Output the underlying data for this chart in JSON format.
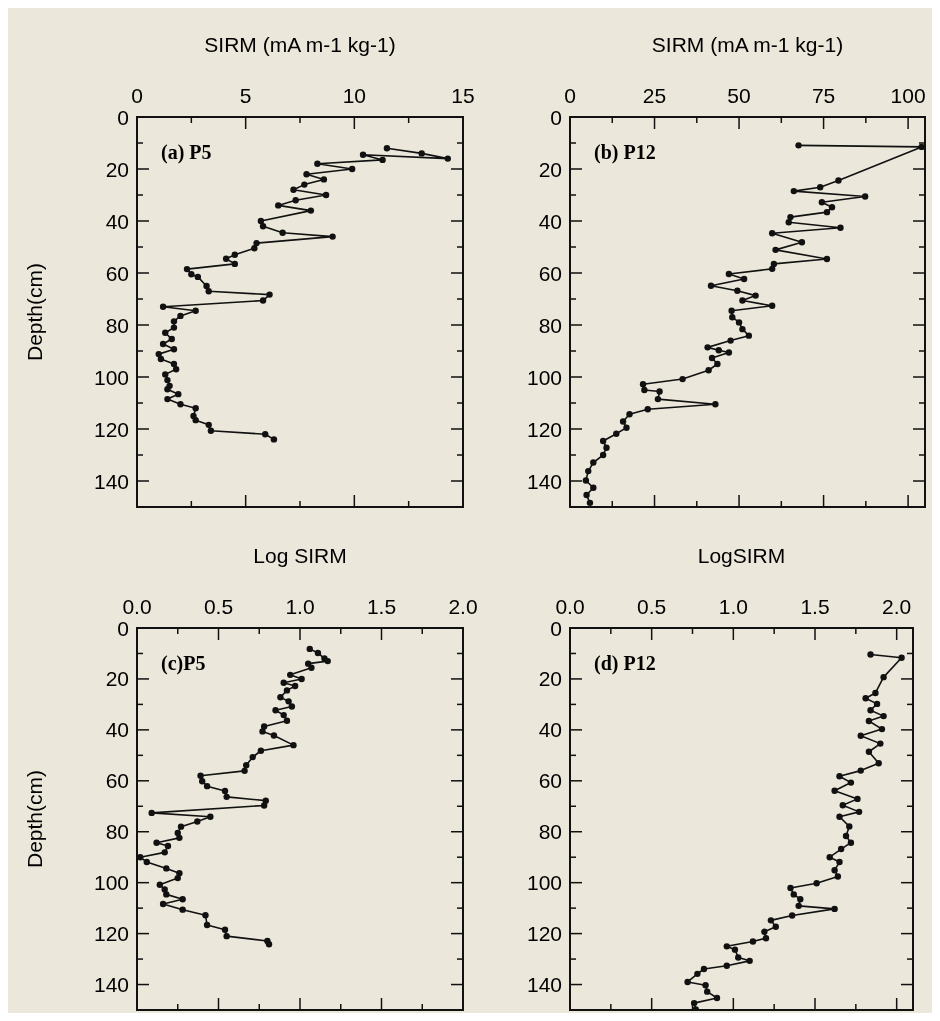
{
  "chart_data": [
    {
      "type": "line",
      "title": "(a) P5",
      "xlabel": "SIRM (mA m-1 kg-1)",
      "ylabel": "Depth(cm)",
      "marker": "circle",
      "line_style": "solid",
      "xlim": [
        0,
        15
      ],
      "ylim": [
        150,
        0
      ],
      "xticks": [
        0,
        {
          "value": 2.5,
          "label": null
        },
        5,
        {
          "value": 7.5,
          "label": null
        },
        10,
        {
          "value": 12.5,
          "label": null
        },
        15
      ],
      "yticks": [
        0,
        {
          "value": 10,
          "label": null
        },
        20,
        {
          "value": 30,
          "label": null
        },
        40,
        {
          "value": 50,
          "label": null
        },
        60,
        {
          "value": 70,
          "label": null
        },
        80,
        {
          "value": 90,
          "label": null
        },
        100,
        {
          "value": 110,
          "label": null
        },
        120,
        {
          "value": 130,
          "label": null
        },
        140
      ],
      "series": [
        {
          "color": "#111111",
          "x": [
            11.5,
            13.1,
            14.3,
            10.4,
            11.3,
            8.3,
            9.9,
            7.8,
            8.6,
            7.7,
            7.2,
            8.7,
            7.3,
            6.5,
            8.0,
            5.7,
            5.8,
            6.7,
            9.0,
            5.5,
            5.4,
            4.5,
            4.1,
            4.5,
            2.3,
            2.5,
            2.8,
            3.2,
            3.3,
            6.1,
            5.8,
            1.2,
            2.7,
            2.0,
            1.7,
            1.7,
            1.3,
            1.6,
            1.2,
            1.7,
            1.0,
            1.1,
            1.7,
            1.8,
            1.3,
            1.4,
            1.5,
            1.4,
            1.9,
            1.4,
            2.0,
            2.7,
            2.6,
            2.7,
            3.3,
            3.4,
            5.9,
            6.3
          ],
          "values": [
            12,
            14,
            16,
            14.5,
            16.5,
            18,
            20,
            22,
            24,
            26,
            28,
            30,
            32,
            34,
            36,
            40,
            42,
            44.5,
            46,
            48.5,
            50.5,
            53,
            54.5,
            56.5,
            58.5,
            60.5,
            61.5,
            65,
            67,
            68.3,
            70.6,
            73,
            74.5,
            76.5,
            78.6,
            81,
            83,
            85.4,
            87.3,
            89.3,
            91.2,
            93.1,
            95,
            97,
            99,
            101.2,
            103.4,
            104.7,
            106.6,
            108.5,
            110.5,
            112,
            115,
            116.6,
            118.4,
            120.7,
            122,
            124
          ]
        }
      ]
    },
    {
      "type": "line",
      "title": "(b) P12",
      "xlabel": "SIRM (mA m-1 kg-1)",
      "marker": "circle",
      "line_style": "solid",
      "xlim": [
        0,
        105
      ],
      "ylim": [
        150,
        0
      ],
      "xticks": [
        0,
        {
          "value": 12.5,
          "label": null
        },
        25,
        {
          "value": 37.5,
          "label": null
        },
        50,
        {
          "value": 62.5,
          "label": null
        },
        75,
        {
          "value": 87.5,
          "label": null
        },
        100
      ],
      "yticks": [
        0,
        {
          "value": 10,
          "label": null
        },
        20,
        {
          "value": 30,
          "label": null
        },
        40,
        {
          "value": 50,
          "label": null
        },
        60,
        {
          "value": 70,
          "label": null
        },
        80,
        {
          "value": 90,
          "label": null
        },
        100,
        {
          "value": 110,
          "label": null
        },
        120,
        {
          "value": 130,
          "label": null
        },
        140
      ],
      "series": [
        {
          "color": "#111111",
          "x": [
            67.6,
            104,
            79.4,
            74,
            66.2,
            87.3,
            74.5,
            77.5,
            76,
            65.2,
            64.7,
            80,
            59.8,
            68.6,
            60.8,
            76,
            60.3,
            59.8,
            47,
            51.5,
            41.7,
            49.5,
            54.9,
            51,
            59.8,
            47.8,
            48,
            50,
            51,
            52.9,
            47.5,
            40.7,
            44,
            47,
            42,
            43.6,
            41,
            33.3,
            21.6,
            22,
            26.5,
            26,
            43,
            23,
            17.6,
            15.7,
            16.7,
            13.7,
            9.8,
            10.8,
            9.8,
            6.9,
            5.4,
            4.7,
            6.9,
            4.9,
            5.9
          ],
          "values": [
            10.9,
            11.5,
            24.4,
            27,
            28.5,
            30.6,
            32.8,
            34.7,
            36.6,
            38.5,
            40.5,
            42.6,
            44.7,
            48.2,
            51.1,
            54.6,
            56.5,
            58.4,
            60.4,
            62.3,
            64.9,
            66.8,
            68.7,
            70.6,
            72.6,
            74.5,
            77,
            79,
            81.6,
            84.1,
            86,
            88.6,
            89.7,
            90.6,
            92.7,
            95,
            97.4,
            100.8,
            102.8,
            105,
            105.6,
            108.5,
            110.5,
            112.4,
            114.3,
            117.1,
            119.5,
            121.8,
            124.6,
            127.2,
            130,
            132.9,
            136.2,
            139.8,
            142.6,
            145.4,
            148.4
          ]
        }
      ]
    },
    {
      "type": "line",
      "title": "(c)P5",
      "xlabel": "Log SIRM",
      "ylabel": "Depth(cm)",
      "marker": "circle",
      "line_style": "solid",
      "xlim": [
        0,
        2
      ],
      "ylim": [
        150,
        0
      ],
      "xticks": [
        {
          "value": 0,
          "label": "0.0"
        },
        {
          "value": 0.25,
          "label": null
        },
        {
          "value": 0.5,
          "label": "0.5"
        },
        {
          "value": 0.75,
          "label": null
        },
        {
          "value": 1,
          "label": "1.0"
        },
        {
          "value": 1.25,
          "label": null
        },
        {
          "value": 1.5,
          "label": "1.5"
        },
        {
          "value": 1.75,
          "label": null
        },
        {
          "value": 2,
          "label": "2.0"
        }
      ],
      "yticks": [
        0,
        {
          "value": 10,
          "label": null
        },
        20,
        {
          "value": 30,
          "label": null
        },
        40,
        {
          "value": 50,
          "label": null
        },
        60,
        {
          "value": 70,
          "label": null
        },
        80,
        {
          "value": 90,
          "label": null
        },
        100,
        {
          "value": 110,
          "label": null
        },
        120,
        {
          "value": 130,
          "label": null
        },
        140
      ],
      "series": [
        {
          "color": "#111111",
          "x": [
            1.06,
            1.11,
            1.15,
            1.17,
            1.05,
            1.07,
            0.94,
            1.01,
            0.9,
            0.97,
            0.92,
            0.88,
            0.93,
            0.95,
            0.85,
            0.9,
            0.92,
            0.78,
            0.77,
            0.84,
            0.96,
            0.76,
            0.71,
            0.67,
            0.66,
            0.39,
            0.4,
            0.43,
            0.54,
            0.55,
            0.79,
            0.78,
            0.09,
            0.45,
            0.37,
            0.27,
            0.25,
            0.26,
            0.12,
            0.19,
            0.17,
            0.02,
            0.06,
            0.18,
            0.26,
            0.25,
            0.14,
            0.17,
            0.18,
            0.28,
            0.16,
            0.28,
            0.42,
            0.43,
            0.54,
            0.55,
            0.8,
            0.81
          ],
          "values": [
            8.2,
            9.8,
            12,
            13,
            14,
            15.6,
            18.4,
            20,
            21.5,
            22.8,
            24.5,
            27.2,
            28.8,
            30.8,
            32.3,
            34.2,
            36.4,
            38.7,
            40.6,
            42.2,
            46,
            48.2,
            50.7,
            53.9,
            56.1,
            58,
            60.2,
            62.1,
            64,
            66.3,
            67.8,
            69.7,
            72.6,
            74.1,
            76,
            78,
            80.5,
            82.4,
            84.3,
            85.6,
            88.1,
            90,
            91.9,
            94.4,
            96.3,
            98.2,
            100.8,
            102.7,
            104.6,
            106.5,
            108.4,
            110.6,
            112.8,
            116.6,
            118.5,
            121,
            122.9,
            124.2
          ]
        }
      ]
    },
    {
      "type": "line",
      "title": "(d) P12",
      "xlabel": "LogSIRM",
      "marker": "circle",
      "line_style": "solid",
      "xlim": [
        0,
        2.1
      ],
      "ylim": [
        150,
        0
      ],
      "xticks": [
        {
          "value": 0,
          "label": "0.0"
        },
        {
          "value": 0.25,
          "label": null
        },
        {
          "value": 0.5,
          "label": "0.5"
        },
        {
          "value": 0.75,
          "label": null
        },
        {
          "value": 1,
          "label": "1.0"
        },
        {
          "value": 1.25,
          "label": null
        },
        {
          "value": 1.5,
          "label": "1.5"
        },
        {
          "value": 1.75,
          "label": null
        },
        {
          "value": 2,
          "label": "2.0"
        }
      ],
      "yticks": [
        0,
        {
          "value": 10,
          "label": null
        },
        20,
        {
          "value": 30,
          "label": null
        },
        40,
        {
          "value": 50,
          "label": null
        },
        60,
        {
          "value": 70,
          "label": null
        },
        80,
        {
          "value": 90,
          "label": null
        },
        100,
        {
          "value": 110,
          "label": null
        },
        120,
        {
          "value": 130,
          "label": null
        },
        140
      ],
      "series": [
        {
          "color": "#111111",
          "x": [
            1.84,
            2.03,
            1.92,
            1.87,
            1.81,
            1.88,
            1.84,
            1.92,
            1.83,
            1.91,
            1.78,
            1.9,
            1.83,
            1.89,
            1.78,
            1.65,
            1.72,
            1.62,
            1.76,
            1.67,
            1.77,
            1.65,
            1.71,
            1.69,
            1.72,
            1.66,
            1.59,
            1.65,
            1.62,
            1.64,
            1.51,
            1.35,
            1.37,
            1.41,
            1.4,
            1.62,
            1.36,
            1.23,
            1.26,
            1.19,
            1.2,
            1.12,
            0.96,
            1.01,
            1.03,
            1.1,
            0.96,
            0.82,
            0.78,
            0.72,
            0.83,
            0.84,
            0.9,
            0.76,
            0.77
          ],
          "values": [
            10.4,
            11.7,
            19.3,
            25.5,
            27.6,
            29.8,
            32.3,
            34.6,
            36.5,
            39.7,
            42.3,
            45.4,
            48.6,
            53.1,
            56,
            58.2,
            60.7,
            63.9,
            67.1,
            69.6,
            72.2,
            74.1,
            77.9,
            81.7,
            84.3,
            86.8,
            90,
            91.9,
            95.1,
            97.6,
            100.2,
            102.1,
            104.6,
            106.5,
            109.1,
            110.3,
            112.9,
            114.8,
            117.3,
            119.3,
            121.8,
            123.1,
            125,
            126.3,
            129.4,
            130.7,
            132.6,
            133.9,
            135.8,
            139,
            140.3,
            142.8,
            145.3,
            147.3,
            149.8
          ]
        }
      ]
    }
  ]
}
